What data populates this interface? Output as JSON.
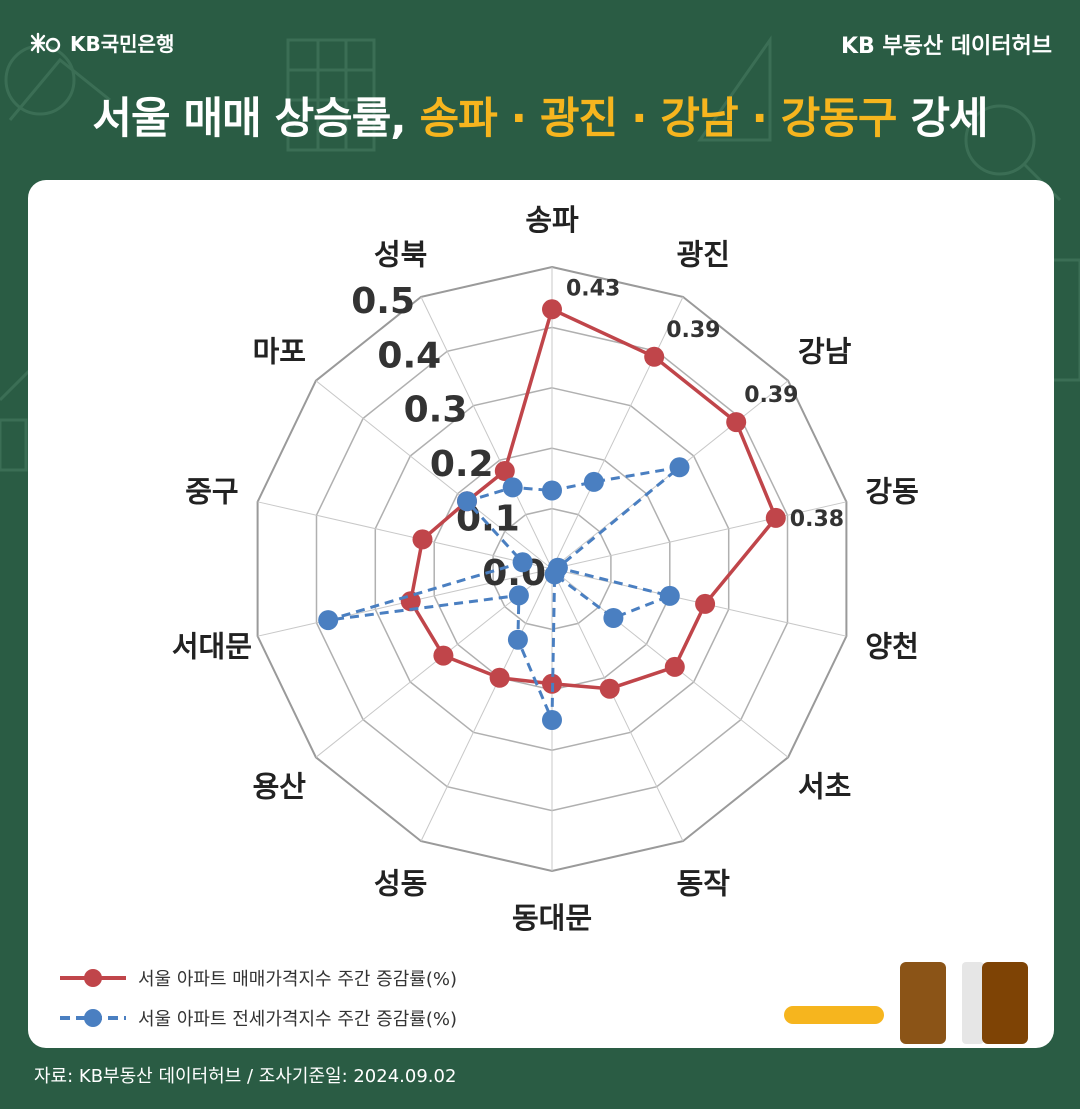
{
  "header": {
    "brand": "KB국민은행",
    "hub": "KB 부동산  데이터허브"
  },
  "headline": {
    "pre": "서울 매매 상승률, ",
    "highlight": "송파 · 광진 · 강남 · 강동구",
    "post": " 강세"
  },
  "colors": {
    "background": "#2a5c44",
    "highlight": "#f6b51e",
    "sale": "#c0454a",
    "jeonse": "#4a7fc1"
  },
  "chart_data": {
    "type": "radar",
    "categories": [
      "송파",
      "광진",
      "강남",
      "강동",
      "양천",
      "서초",
      "동작",
      "동대문",
      "성동",
      "용산",
      "서대문",
      "중구",
      "마포",
      "성북"
    ],
    "rlim": [
      0,
      0.5
    ],
    "tick_labels": [
      "0.0",
      "0.1",
      "0.2",
      "0.3",
      "0.4",
      "0.5"
    ],
    "grid": true,
    "series": [
      {
        "name": "서울 아파트 매매가격지수 주간 증감률(%)",
        "values": [
          0.43,
          0.39,
          0.39,
          0.38,
          0.26,
          0.26,
          0.22,
          0.19,
          0.2,
          0.23,
          0.24,
          0.22,
          0.18,
          0.18
        ],
        "style": "solid"
      },
      {
        "name": "서울 아파트 전세가격지수 주간 증감률(%)",
        "values": [
          0.13,
          0.16,
          0.27,
          0.01,
          0.2,
          0.13,
          0.01,
          0.25,
          0.13,
          0.07,
          0.38,
          0.05,
          0.18,
          0.15
        ],
        "style": "dashed"
      }
    ],
    "data_labels": [
      "0.43",
      "0.39",
      "0.39",
      "0.38"
    ],
    "legend_position": "bottom-left"
  },
  "footer": {
    "source": "자료: KB부동산 데이터허브 / 조사기준일: 2024.09.02"
  }
}
